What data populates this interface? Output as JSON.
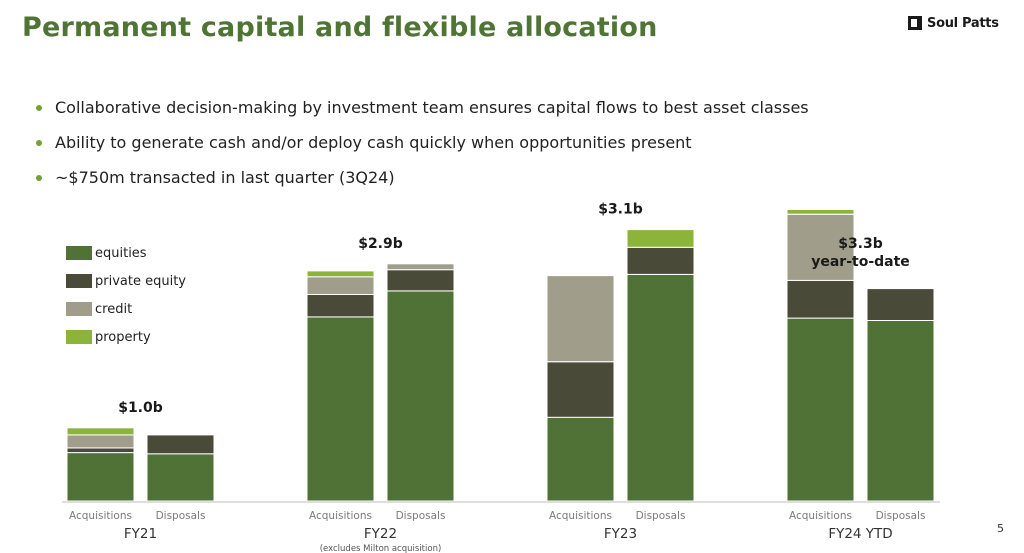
{
  "slide": {
    "title": "Permanent capital and flexible allocation",
    "logo_text": "Soul Patts",
    "page_number": "5"
  },
  "bullets": [
    "Collaborative decision-making by investment team ensures capital flows to best asset classes",
    "Ability to generate cash and/or deploy cash quickly when opportunities present",
    "~$750m transacted in last quarter (3Q24)"
  ],
  "colors": {
    "title": "#4f7535",
    "bullet": "#6fa336",
    "equities": "#507236",
    "private_equity": "#4a4a38",
    "credit": "#a09e8a",
    "property": "#8cb43b"
  },
  "chart_data": {
    "type": "bar",
    "stacked": true,
    "legend": [
      "equities",
      "private equity",
      "credit",
      "property"
    ],
    "legend_position": "top-left",
    "series_colors": [
      "#507236",
      "#4a4a38",
      "#a09e8a",
      "#8cb43b"
    ],
    "ylim": [
      0,
      3.3
    ],
    "grid": false,
    "groups": [
      {
        "label": "FY21",
        "sublabel": "",
        "total_label": "$1.0b",
        "total_label2": "",
        "bars": [
          {
            "label": "Acquisitions",
            "segments": [
              0.41,
              0.04,
              0.11,
              0.06
            ]
          },
          {
            "label": "Disposals",
            "segments": [
              0.4,
              0.16,
              0,
              0
            ]
          }
        ]
      },
      {
        "label": "FY22",
        "sublabel": "(excludes Milton acquisition)",
        "total_label": "$2.9b",
        "total_label2": "",
        "bars": [
          {
            "label": "Acquisitions",
            "segments": [
              1.56,
              0.19,
              0.15,
              0.05
            ]
          },
          {
            "label": "Disposals",
            "segments": [
              1.78,
              0.18,
              0.05,
              0
            ]
          }
        ]
      },
      {
        "label": "FY23",
        "sublabel": "",
        "total_label": "$3.1b",
        "total_label2": "",
        "bars": [
          {
            "label": "Acquisitions",
            "segments": [
              0.71,
              0.47,
              0.73,
              0
            ]
          },
          {
            "label": "Disposals",
            "segments": [
              1.92,
              0.23,
              0,
              0.15
            ]
          }
        ]
      },
      {
        "label": "FY24 YTD",
        "sublabel": "",
        "total_label": "$3.3b",
        "total_label2": "year-to-date",
        "bars": [
          {
            "label": "Acquisitions",
            "segments": [
              1.55,
              0.32,
              0.56,
              0.04
            ]
          },
          {
            "label": "Disposals",
            "segments": [
              1.53,
              0.27,
              0,
              0
            ]
          }
        ]
      }
    ]
  }
}
